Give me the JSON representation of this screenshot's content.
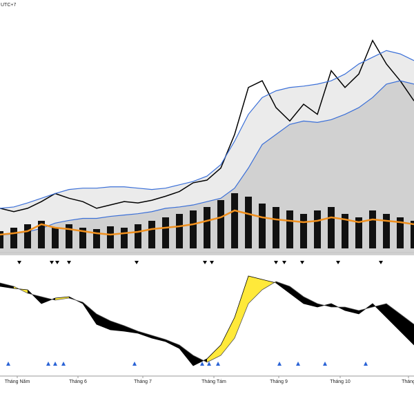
{
  "header": {
    "timezone": "UTC+7"
  },
  "chart_data": [
    {
      "type": "line",
      "xlim": [
        0,
        30
      ],
      "ylim": [
        0,
        370
      ],
      "series": [
        {
          "color": "#000000",
          "values": [
            70,
            65,
            70,
            80,
            92,
            85,
            80,
            70,
            75,
            80,
            78,
            82,
            88,
            95,
            108,
            112,
            130,
            180,
            250,
            260,
            220,
            200,
            225,
            210,
            275,
            250,
            270,
            320,
            285,
            260,
            230
          ]
        },
        {
          "color": "#3a6fd8",
          "values": [
            70,
            72,
            78,
            85,
            92,
            98,
            100,
            100,
            102,
            102,
            100,
            98,
            100,
            105,
            110,
            118,
            135,
            170,
            210,
            235,
            245,
            250,
            252,
            255,
            260,
            270,
            285,
            295,
            305,
            300,
            290
          ]
        },
        {
          "color": "#3a6fd8",
          "values": [
            30,
            32,
            35,
            40,
            48,
            52,
            55,
            55,
            58,
            60,
            62,
            65,
            70,
            72,
            75,
            80,
            85,
            100,
            130,
            165,
            180,
            195,
            200,
            198,
            202,
            210,
            220,
            235,
            255,
            260,
            255
          ]
        }
      ],
      "markers_down_x": [
        1.4,
        3.75,
        4.15,
        5,
        9.9,
        14.85,
        15.35,
        20,
        20.6,
        21.9,
        24.5,
        27.6
      ]
    },
    {
      "type": "bar",
      "xlim": [
        0,
        30
      ],
      "ylim": [
        0,
        80
      ],
      "color": "#111111",
      "values": [
        25,
        30,
        35,
        40,
        30,
        35,
        30,
        28,
        32,
        30,
        35,
        40,
        45,
        50,
        55,
        60,
        70,
        80,
        75,
        65,
        60,
        55,
        50,
        55,
        60,
        50,
        45,
        55,
        50,
        45,
        40
      ],
      "line": {
        "color": "#f0901e",
        "values": [
          20,
          22,
          25,
          35,
          30,
          28,
          25,
          22,
          20,
          22,
          24,
          28,
          30,
          32,
          35,
          40,
          45,
          55,
          50,
          45,
          42,
          40,
          38,
          40,
          45,
          42,
          38,
          42,
          40,
          38,
          35
        ]
      }
    },
    {
      "type": "oscillator",
      "xlim": [
        0,
        30
      ],
      "ylim": [
        0,
        150
      ],
      "series": [
        {
          "color": "#000000",
          "values": [
            125,
            122,
            120,
            100,
            108,
            110,
            100,
            70,
            62,
            60,
            57,
            50,
            45,
            35,
            10,
            20,
            40,
            80,
            140,
            135,
            130,
            115,
            100,
            95,
            100,
            90,
            85,
            100,
            80,
            60,
            40
          ]
        },
        {
          "color": "#555555",
          "values": [
            130,
            125,
            115,
            110,
            105,
            108,
            102,
            85,
            75,
            68,
            60,
            54,
            48,
            40,
            25,
            15,
            25,
            50,
            100,
            120,
            132,
            125,
            110,
            100,
            95,
            95,
            90,
            95,
            100,
            85,
            70
          ]
        }
      ],
      "fill_up_color": "#ffe93a",
      "fill_down_color": "#000000",
      "markers_up_x": [
        0.6,
        3.5,
        4,
        4.6,
        9.75,
        14.65,
        15.15,
        15.8,
        20.25,
        21.6,
        23.55,
        26.5
      ],
      "xticks": [
        {
          "value": 1.25,
          "label": "Tháng Năm"
        },
        {
          "value": 5.65,
          "label": "Tháng 6"
        },
        {
          "value": 10.35,
          "label": "Tháng 7"
        },
        {
          "value": 15.5,
          "label": "Tháng Tám"
        },
        {
          "value": 20.2,
          "label": "Tháng 9"
        },
        {
          "value": 24.65,
          "label": "Tháng 10"
        },
        {
          "value": 29.6,
          "label": "Tháng"
        }
      ]
    }
  ]
}
